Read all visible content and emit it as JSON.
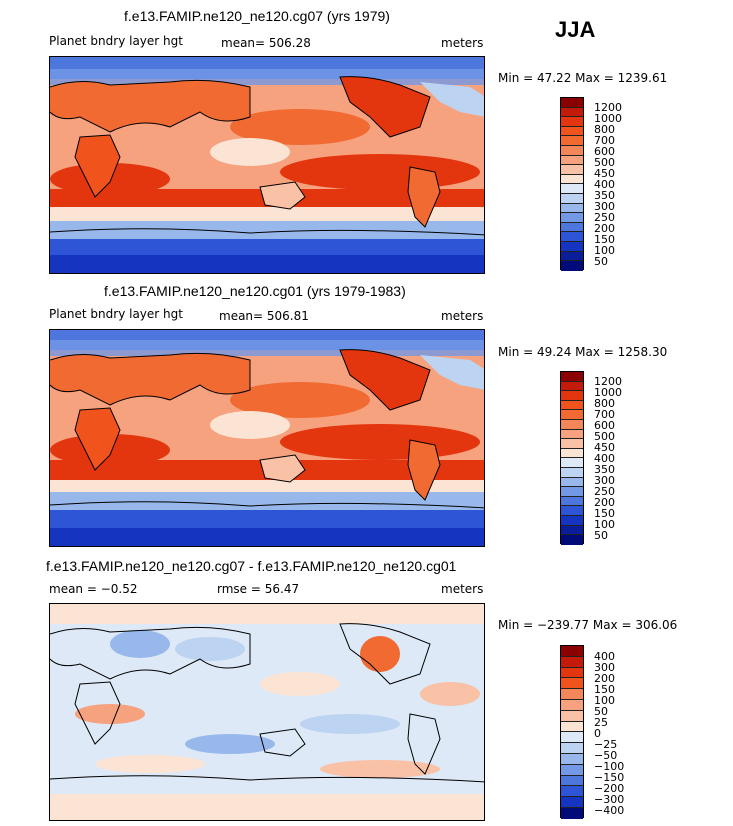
{
  "season": "JJA",
  "units": "meters",
  "panels": [
    {
      "title": "f.e13.FAMIP.ne120_ne120.cg07 (yrs 1979)",
      "variable": "Planet bndry layer hgt",
      "stat": "mean= 506.28",
      "units": "meters",
      "minmax": "Min =  47.22 Max = 1239.61",
      "colorbar_labels": [
        "1200",
        "1000",
        "800",
        "700",
        "600",
        "500",
        "450",
        "400",
        "350",
        "300",
        "250",
        "200",
        "150",
        "100",
        "50"
      ]
    },
    {
      "title": "f.e13.FAMIP.ne120_ne120.cg01 (yrs 1979-1983)",
      "variable": "Planet bndry layer hgt",
      "stat": "mean= 506.81",
      "units": "meters",
      "minmax": "Min =  49.24 Max = 1258.30",
      "colorbar_labels": [
        "1200",
        "1000",
        "800",
        "700",
        "600",
        "500",
        "450",
        "400",
        "350",
        "300",
        "250",
        "200",
        "150",
        "100",
        "50"
      ]
    },
    {
      "title": "f.e13.FAMIP.ne120_ne120.cg07 - f.e13.FAMIP.ne120_ne120.cg01",
      "mean": "mean =  −0.52",
      "rmse": "rmse =  56.47",
      "units": "meters",
      "minmax": "Min = −239.77 Max = 306.06",
      "colorbar_labels": [
        "400",
        "300",
        "200",
        "150",
        "100",
        "50",
        "25",
        "0",
        "−25",
        "−50",
        "−100",
        "−150",
        "−200",
        "−300",
        "−400"
      ]
    }
  ],
  "colors": {
    "levels": [
      "#8b0000",
      "#c41a0a",
      "#e3360e",
      "#f0531c",
      "#f06a32",
      "#f3875a",
      "#f6a27e",
      "#f9c2a6",
      "#fce4d4",
      "#dde9f7",
      "#bcd3f1",
      "#98b8ec",
      "#7399e6",
      "#4e77de",
      "#2d55d5",
      "#1535c0",
      "#0a1e9a",
      "#000a78"
    ]
  }
}
